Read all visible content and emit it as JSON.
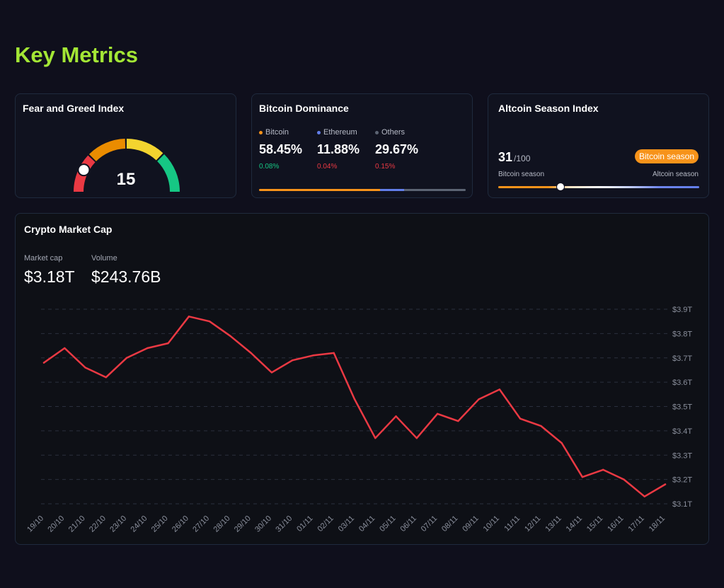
{
  "page": {
    "title": "Key Metrics",
    "accent": "#a3e635"
  },
  "fear_greed": {
    "title": "Fear and Greed Index",
    "value": "15",
    "numeric_value": 15,
    "segment_colors": [
      "#ea3943",
      "#ea8c00",
      "#f3d42f",
      "#16c784"
    ]
  },
  "btc_dominance": {
    "title": "Bitcoin Dominance",
    "items": [
      {
        "label": "Bitcoin",
        "value": "58.45%",
        "change": "0.08%",
        "change_dir": "up",
        "color": "#f7931a",
        "share": 58.45
      },
      {
        "label": "Ethereum",
        "value": "11.88%",
        "change": "0.04%",
        "change_dir": "down",
        "color": "#627eea",
        "share": 11.88
      },
      {
        "label": "Others",
        "value": "29.67%",
        "change": "0.15%",
        "change_dir": "down",
        "color": "#5c6473",
        "share": 29.67
      }
    ]
  },
  "altcoin_season": {
    "title": "Altcoin Season Index",
    "value": "31",
    "max": "/100",
    "numeric_value": 31,
    "badge": "Bitcoin season",
    "left_label": "Bitcoin season",
    "right_label": "Altcoin season"
  },
  "market_cap": {
    "title": "Crypto Market Cap",
    "market_cap_label": "Market cap",
    "market_cap_value": "$3.18T",
    "volume_label": "Volume",
    "volume_value": "$243.76B"
  },
  "chart_data": {
    "type": "line",
    "title": "Crypto Market Cap",
    "x": [
      "19/10",
      "20/10",
      "21/10",
      "22/10",
      "23/10",
      "24/10",
      "25/10",
      "26/10",
      "27/10",
      "28/10",
      "29/10",
      "30/10",
      "31/10",
      "01/11",
      "02/11",
      "03/11",
      "04/11",
      "05/11",
      "06/11",
      "07/11",
      "08/11",
      "09/11",
      "10/11",
      "11/11",
      "12/11",
      "13/11",
      "14/11",
      "15/11",
      "16/11",
      "17/11",
      "18/11"
    ],
    "y_tick_labels": [
      "$3.1T",
      "$3.2T",
      "$3.3T",
      "$3.4T",
      "$3.5T",
      "$3.6T",
      "$3.7T",
      "$3.8T",
      "$3.9T"
    ],
    "y_ticks": [
      3.1,
      3.2,
      3.3,
      3.4,
      3.5,
      3.6,
      3.7,
      3.8,
      3.9
    ],
    "ylim": [
      3.1,
      3.9
    ],
    "series": [
      {
        "name": "Market cap",
        "color": "#ea3943",
        "values": [
          3.68,
          3.74,
          3.66,
          3.62,
          3.7,
          3.74,
          3.76,
          3.87,
          3.85,
          3.79,
          3.72,
          3.64,
          3.69,
          3.71,
          3.72,
          3.53,
          3.37,
          3.46,
          3.37,
          3.47,
          3.44,
          3.53,
          3.57,
          3.45,
          3.42,
          3.35,
          3.21,
          3.24,
          3.2,
          3.13,
          3.18
        ]
      }
    ],
    "grid": true,
    "grid_style": "dashed",
    "y_axis_side": "right"
  }
}
